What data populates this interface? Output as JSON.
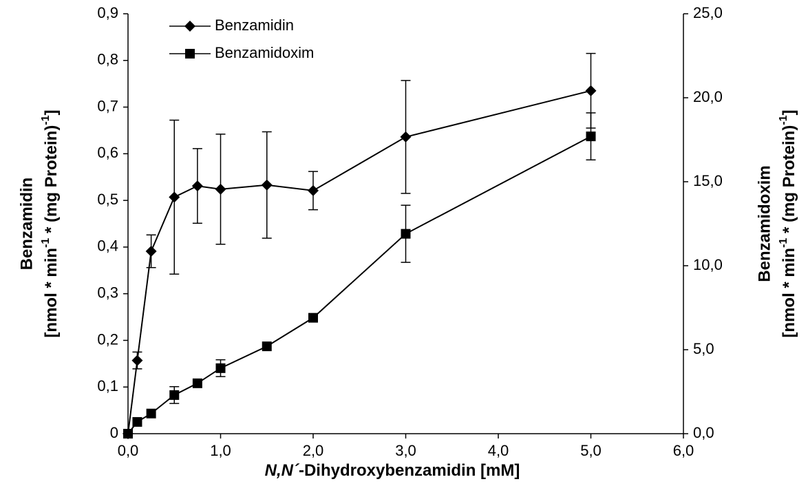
{
  "chart_data": {
    "type": "line",
    "x": [
      0,
      0.1,
      0.25,
      0.5,
      0.75,
      1.0,
      1.5,
      2.0,
      3.0,
      5.0
    ],
    "series": [
      {
        "name": "Benzamidin",
        "color": "#000000",
        "marker": "diamond",
        "axis": "y",
        "values": [
          0,
          0.157,
          0.391,
          0.507,
          0.531,
          0.524,
          0.533,
          0.521,
          0.636,
          0.735
        ],
        "errors": [
          null,
          0.018,
          0.035,
          0.165,
          0.08,
          0.118,
          0.114,
          0.041,
          0.121,
          0.08
        ]
      },
      {
        "name": "Benzamidoxim",
        "color": "#000000",
        "marker": "square",
        "axis": "y2",
        "values": [
          0,
          0.7,
          1.2,
          2.3,
          3.0,
          3.9,
          5.2,
          6.9,
          11.9,
          17.7
        ],
        "errors": [
          null,
          null,
          null,
          0.5,
          null,
          0.5,
          null,
          0.2,
          1.7,
          1.4
        ]
      }
    ],
    "xlim": [
      0,
      6
    ],
    "xticks": [
      {
        "value": 0,
        "label": "0,0"
      },
      {
        "value": 1,
        "label": "1,0"
      },
      {
        "value": 2,
        "label": "2,0"
      },
      {
        "value": 3,
        "label": "3,0"
      },
      {
        "value": 4,
        "label": "4,0"
      },
      {
        "value": 5,
        "label": "5,0"
      },
      {
        "value": 6,
        "label": "6,0"
      }
    ],
    "ylim": [
      0,
      0.9
    ],
    "yticks": [
      0,
      {
        "value": 0.1,
        "label": "0,1"
      },
      {
        "value": 0.2,
        "label": "0,2"
      },
      {
        "value": 0.3,
        "label": "0,3"
      },
      {
        "value": 0.4,
        "label": "0,4"
      },
      {
        "value": 0.5,
        "label": "0,5"
      },
      {
        "value": 0.6,
        "label": "0,6"
      },
      {
        "value": 0.7,
        "label": "0,7"
      },
      {
        "value": 0.8,
        "label": "0,8"
      },
      {
        "value": 0.9,
        "label": "0,9"
      }
    ],
    "y2lim": [
      0,
      25
    ],
    "y2ticks": [
      {
        "value": 0,
        "label": "0,0"
      },
      {
        "value": 5,
        "label": "5,0"
      },
      {
        "value": 10,
        "label": "10,0"
      },
      {
        "value": 15,
        "label": "15,0"
      },
      {
        "value": 20,
        "label": "20,0"
      },
      {
        "value": 25,
        "label": "25,0"
      }
    ],
    "xlabel": {
      "italic": "N,N´",
      "rest": "-Dihydroxybenzamidin [mM]"
    },
    "ylabel": {
      "line1": "Benzamidin",
      "a": "[nmol * min",
      "sup1": "-1",
      "b": " * (mg Protein)",
      "sup2": "-1",
      "c": "]"
    },
    "y2label": {
      "line1": "Benzamidoxim",
      "a": "[nmol * min",
      "sup1": "-1",
      "b": " * (mg Protein)",
      "sup2": "-1",
      "c": "]"
    },
    "legend": "upper left"
  }
}
